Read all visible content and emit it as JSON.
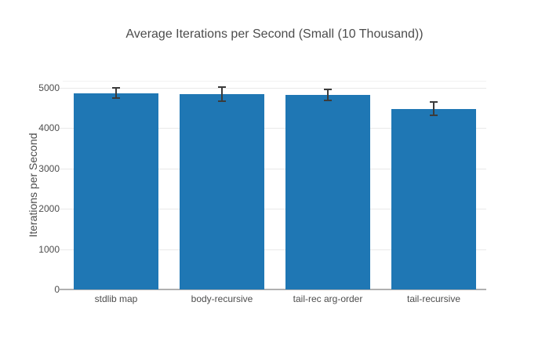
{
  "chart_data": {
    "type": "bar",
    "title": "Average Iterations per Second (Small (10 Thousand))",
    "xlabel": "",
    "ylabel": "Iterations per Second",
    "categories": [
      "stdlib map",
      "body-recursive",
      "tail-rec arg-order",
      "tail-recursive"
    ],
    "values": [
      4860,
      4840,
      4815,
      4470
    ],
    "error_bars": [
      145,
      195,
      155,
      185
    ],
    "yticks": [
      0,
      1000,
      2000,
      3000,
      4000,
      5000
    ],
    "ylim": [
      0,
      5170
    ],
    "grid": "horizontal",
    "legend": "none",
    "bar_color": "#1f77b4",
    "error_color": "#3b3b3b",
    "grid_color": "#e9e9e9",
    "baseline_color": "#b0b0b0",
    "text_color": "#4d4d4d",
    "background_color": "#ffffff"
  }
}
